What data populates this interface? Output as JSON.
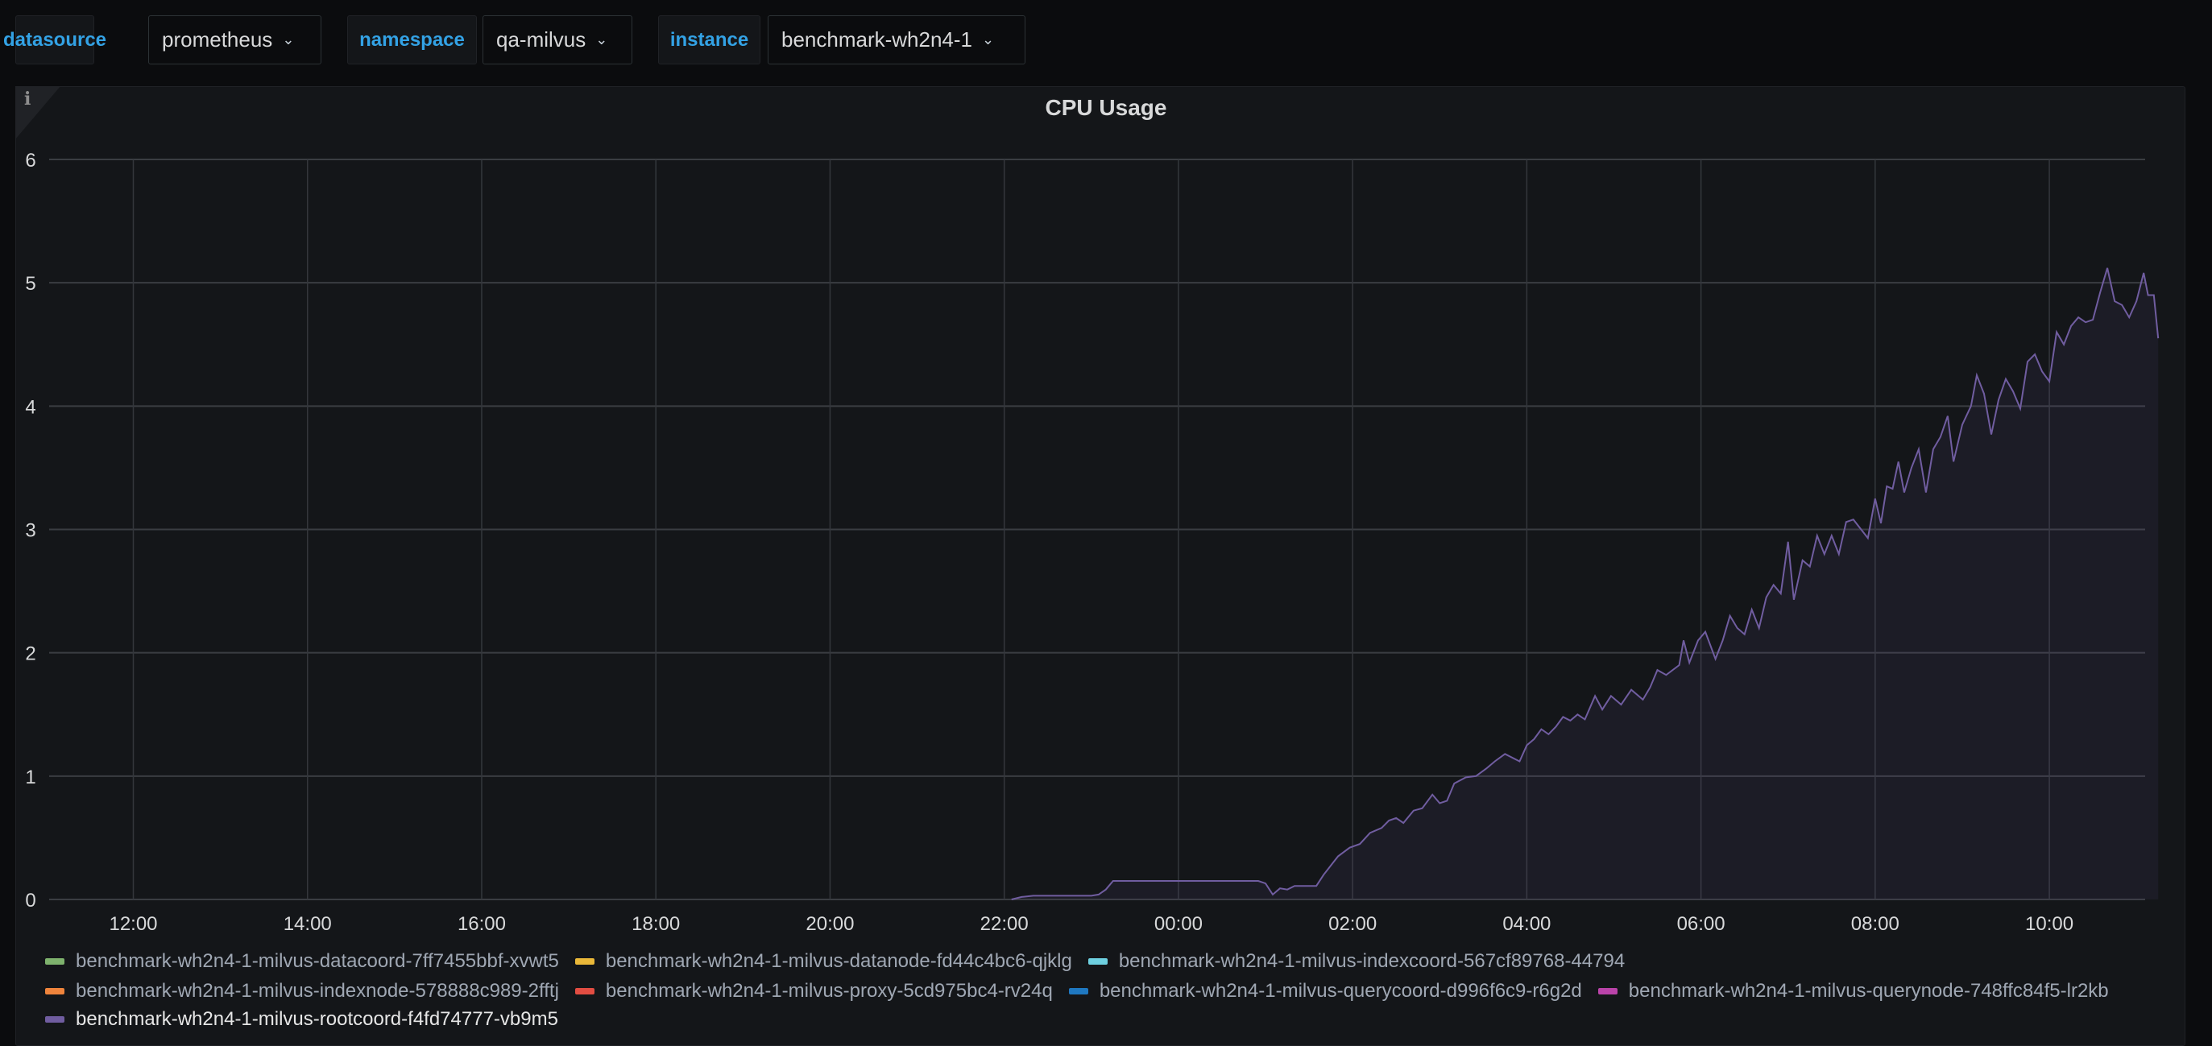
{
  "variables": [
    {
      "label": "datasource",
      "value": "prometheus"
    },
    {
      "label": "namespace",
      "value": "qa-milvus"
    },
    {
      "label": "instance",
      "value": "benchmark-wh2n4-1"
    }
  ],
  "panel": {
    "title": "CPU Usage",
    "info_icon": "info-icon"
  },
  "chart_data": {
    "type": "area",
    "title": "CPU Usage",
    "ylim": [
      0,
      6
    ],
    "yticks": [
      "0",
      "1",
      "2",
      "3",
      "4",
      "5",
      "6"
    ],
    "xticks": [
      "12:00",
      "14:00",
      "16:00",
      "18:00",
      "20:00",
      "22:00",
      "00:00",
      "02:00",
      "04:00",
      "06:00",
      "08:00",
      "10:00"
    ],
    "xrange": [
      "11:02",
      "11:06"
    ],
    "grid": true,
    "legend_placement": "bottom",
    "series": [
      {
        "name": "benchmark-wh2n4-1-milvus-datacoord-7ff7455bbf-xvwt5",
        "color": "#7eb26d",
        "points": []
      },
      {
        "name": "benchmark-wh2n4-1-milvus-datanode-fd44c4bc6-qjklg",
        "color": "#eab839",
        "points": []
      },
      {
        "name": "benchmark-wh2n4-1-milvus-indexcoord-567cf89768-44794",
        "color": "#6ed0e0",
        "points": []
      },
      {
        "name": "benchmark-wh2n4-1-milvus-indexnode-578888c989-2fftj",
        "color": "#ef843c",
        "points": []
      },
      {
        "name": "benchmark-wh2n4-1-milvus-proxy-5cd975bc4-rv24q",
        "color": "#e24d42",
        "points": []
      },
      {
        "name": "benchmark-wh2n4-1-milvus-querycoord-d996f6c9-r6g2d",
        "color": "#1f78c1",
        "points": []
      },
      {
        "name": "benchmark-wh2n4-1-milvus-querynode-748ffc84f5-lr2kb",
        "color": "#ba43a9",
        "points": []
      },
      {
        "name": "benchmark-wh2n4-1-milvus-rootcoord-f4fd74777-vb9m5",
        "color": "#705da0",
        "points": [
          [
            "22:05",
            0
          ],
          [
            "22:12",
            0.02
          ],
          [
            "22:20",
            0.03
          ],
          [
            "22:40",
            0.03
          ],
          [
            "23:00",
            0.03
          ],
          [
            "23:05",
            0.04
          ],
          [
            "23:10",
            0.08
          ],
          [
            "23:15",
            0.15
          ],
          [
            "23:40",
            0.15
          ],
          [
            "00:00",
            0.15
          ],
          [
            "00:30",
            0.15
          ],
          [
            "00:55",
            0.15
          ],
          [
            "01:00",
            0.13
          ],
          [
            "01:05",
            0.04
          ],
          [
            "01:10",
            0.09
          ],
          [
            "01:15",
            0.08
          ],
          [
            "01:20",
            0.11
          ],
          [
            "01:35",
            0.11
          ],
          [
            "01:40",
            0.2
          ],
          [
            "01:50",
            0.35
          ],
          [
            "01:58",
            0.42
          ],
          [
            "02:05",
            0.45
          ],
          [
            "02:12",
            0.54
          ],
          [
            "02:20",
            0.58
          ],
          [
            "02:25",
            0.64
          ],
          [
            "02:30",
            0.66
          ],
          [
            "02:35",
            0.62
          ],
          [
            "02:42",
            0.72
          ],
          [
            "02:48",
            0.74
          ],
          [
            "02:55",
            0.85
          ],
          [
            "03:00",
            0.78
          ],
          [
            "03:05",
            0.8
          ],
          [
            "03:10",
            0.94
          ],
          [
            "03:18",
            0.99
          ],
          [
            "03:25",
            1.0
          ],
          [
            "03:32",
            1.06
          ],
          [
            "03:38",
            1.12
          ],
          [
            "03:45",
            1.18
          ],
          [
            "03:55",
            1.12
          ],
          [
            "04:00",
            1.25
          ],
          [
            "04:05",
            1.3
          ],
          [
            "04:10",
            1.38
          ],
          [
            "04:15",
            1.34
          ],
          [
            "04:20",
            1.4
          ],
          [
            "04:25",
            1.48
          ],
          [
            "04:30",
            1.45
          ],
          [
            "04:35",
            1.5
          ],
          [
            "04:40",
            1.46
          ],
          [
            "04:47",
            1.65
          ],
          [
            "04:52",
            1.54
          ],
          [
            "04:58",
            1.65
          ],
          [
            "05:05",
            1.58
          ],
          [
            "05:12",
            1.7
          ],
          [
            "05:20",
            1.62
          ],
          [
            "05:25",
            1.72
          ],
          [
            "05:30",
            1.86
          ],
          [
            "05:36",
            1.82
          ],
          [
            "05:45",
            1.9
          ],
          [
            "05:48",
            2.1
          ],
          [
            "05:52",
            1.92
          ],
          [
            "05:58",
            2.1
          ],
          [
            "06:03",
            2.17
          ],
          [
            "06:10",
            1.95
          ],
          [
            "06:15",
            2.1
          ],
          [
            "06:20",
            2.3
          ],
          [
            "06:25",
            2.2
          ],
          [
            "06:30",
            2.15
          ],
          [
            "06:35",
            2.35
          ],
          [
            "06:40",
            2.2
          ],
          [
            "06:45",
            2.45
          ],
          [
            "06:50",
            2.55
          ],
          [
            "06:55",
            2.48
          ],
          [
            "07:00",
            2.9
          ],
          [
            "07:04",
            2.43
          ],
          [
            "07:10",
            2.75
          ],
          [
            "07:15",
            2.7
          ],
          [
            "07:20",
            2.95
          ],
          [
            "07:25",
            2.8
          ],
          [
            "07:30",
            2.95
          ],
          [
            "07:35",
            2.8
          ],
          [
            "07:40",
            3.06
          ],
          [
            "07:45",
            3.08
          ],
          [
            "07:55",
            2.93
          ],
          [
            "08:00",
            3.25
          ],
          [
            "08:04",
            3.05
          ],
          [
            "08:08",
            3.35
          ],
          [
            "08:12",
            3.33
          ],
          [
            "08:16",
            3.55
          ],
          [
            "08:20",
            3.3
          ],
          [
            "08:25",
            3.5
          ],
          [
            "08:30",
            3.65
          ],
          [
            "08:35",
            3.3
          ],
          [
            "08:40",
            3.65
          ],
          [
            "08:45",
            3.75
          ],
          [
            "08:50",
            3.92
          ],
          [
            "08:54",
            3.55
          ],
          [
            "09:00",
            3.85
          ],
          [
            "09:06",
            4.0
          ],
          [
            "09:10",
            4.25
          ],
          [
            "09:15",
            4.1
          ],
          [
            "09:20",
            3.77
          ],
          [
            "09:25",
            4.05
          ],
          [
            "09:30",
            4.22
          ],
          [
            "09:35",
            4.12
          ],
          [
            "09:40",
            3.98
          ],
          [
            "09:45",
            4.36
          ],
          [
            "09:50",
            4.42
          ],
          [
            "09:55",
            4.28
          ],
          [
            "10:00",
            4.2
          ],
          [
            "10:05",
            4.6
          ],
          [
            "10:10",
            4.5
          ],
          [
            "10:15",
            4.65
          ],
          [
            "10:20",
            4.72
          ],
          [
            "10:25",
            4.68
          ],
          [
            "10:30",
            4.7
          ],
          [
            "10:35",
            4.92
          ],
          [
            "10:40",
            5.12
          ],
          [
            "10:45",
            4.85
          ],
          [
            "10:50",
            4.82
          ],
          [
            "10:55",
            4.72
          ],
          [
            "11:00",
            4.85
          ],
          [
            "11:05",
            5.08
          ],
          [
            "11:08",
            4.9
          ],
          [
            "11:12",
            4.9
          ],
          [
            "11:15",
            4.55
          ]
        ]
      }
    ]
  }
}
